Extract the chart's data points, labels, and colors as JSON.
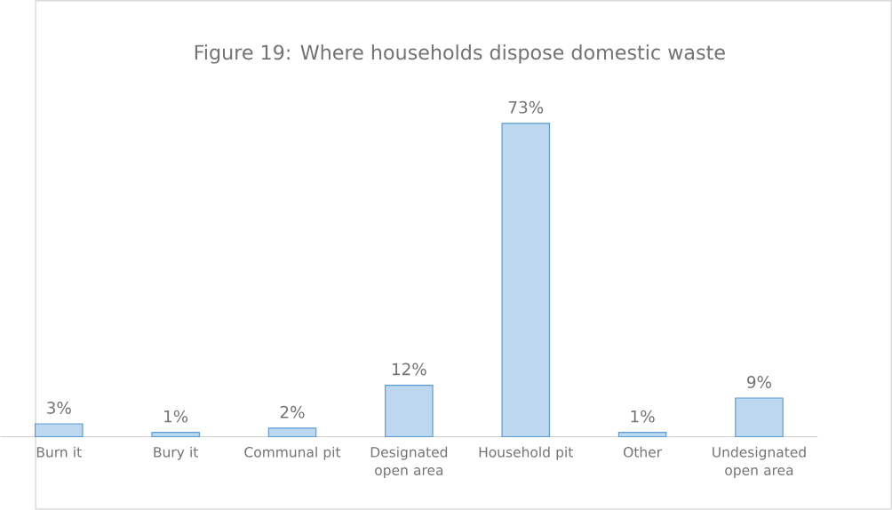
{
  "chart_data": {
    "type": "bar",
    "title": "Figure 19: Where households dispose domestic waste",
    "categories": [
      "Burn it",
      "Bury it",
      "Communal pit",
      "Designated open area",
      "Household pit",
      "Other",
      "Undesignated open area"
    ],
    "values": [
      3,
      1,
      2,
      12,
      73,
      1,
      9
    ],
    "value_labels": [
      "3%",
      "1%",
      "2%",
      "12%",
      "73%",
      "1%",
      "9%"
    ],
    "color": "#5b9bd5"
  }
}
